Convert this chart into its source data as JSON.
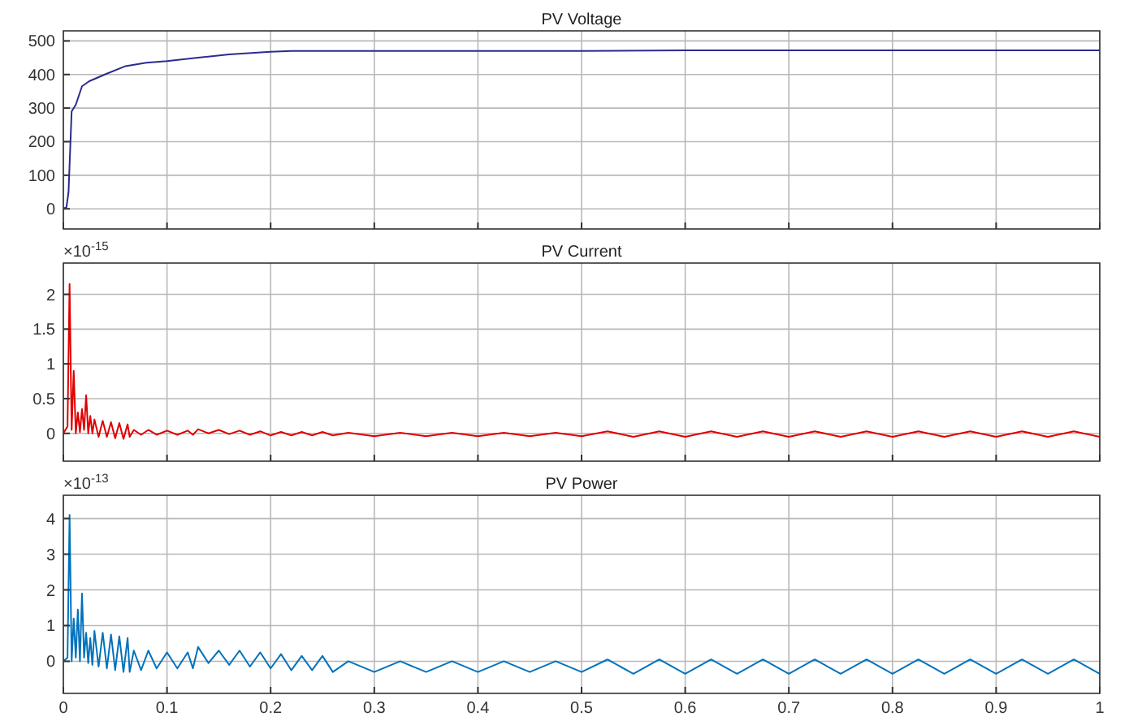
{
  "chart_data": [
    {
      "type": "line",
      "title": "PV Voltage",
      "x": [
        0,
        0.003,
        0.005,
        0.008,
        0.012,
        0.018,
        0.025,
        0.04,
        0.06,
        0.08,
        0.1,
        0.13,
        0.16,
        0.2,
        0.22,
        0.3,
        0.5,
        0.6,
        1
      ],
      "series": [
        {
          "color": "#2b2b8f",
          "values": [
            0,
            5,
            50,
            290,
            310,
            365,
            380,
            400,
            425,
            435,
            440,
            450,
            460,
            468,
            470,
            470,
            470,
            472,
            472
          ]
        }
      ],
      "xlim": [
        0,
        1
      ],
      "xticks": [
        {
          "value": 0,
          "label": null
        },
        {
          "value": 0.1,
          "label": null
        },
        {
          "value": 0.2,
          "label": null
        },
        {
          "value": 0.3,
          "label": null
        },
        {
          "value": 0.4,
          "label": null
        },
        {
          "value": 0.5,
          "label": null
        },
        {
          "value": 0.6,
          "label": null
        },
        {
          "value": 0.7,
          "label": null
        },
        {
          "value": 0.8,
          "label": null
        },
        {
          "value": 0.9,
          "label": null
        },
        {
          "value": 1,
          "label": null
        }
      ],
      "ylim": [
        -60,
        530
      ],
      "yticks": [
        0,
        100,
        200,
        300,
        400,
        500
      ],
      "grid": true,
      "tick_labels": "y"
    },
    {
      "type": "line",
      "title": "PV Current",
      "annotations": [
        "×10$^{-15}$"
      ],
      "x": [
        0,
        0.004,
        0.006,
        0.008,
        0.01,
        0.012,
        0.014,
        0.016,
        0.018,
        0.02,
        0.022,
        0.024,
        0.026,
        0.028,
        0.03,
        0.034,
        0.038,
        0.042,
        0.046,
        0.05,
        0.054,
        0.058,
        0.062,
        0.064,
        0.068,
        0.075,
        0.082,
        0.09,
        0.1,
        0.11,
        0.12,
        0.125,
        0.13,
        0.14,
        0.15,
        0.16,
        0.17,
        0.18,
        0.19,
        0.2,
        0.21,
        0.22,
        0.23,
        0.24,
        0.25,
        0.26,
        0.275,
        0.3,
        0.325,
        0.35,
        0.375,
        0.4,
        0.425,
        0.45,
        0.475,
        0.5,
        0.525,
        0.55,
        0.575,
        0.6,
        0.625,
        0.65,
        0.675,
        0.7,
        0.725,
        0.75,
        0.775,
        0.8,
        0.825,
        0.85,
        0.875,
        0.9,
        0.925,
        0.95,
        0.975,
        1
      ],
      "series": [
        {
          "color": "#e00000",
          "values": [
            0,
            0.1,
            2.15,
            0.05,
            0.9,
            0,
            0.3,
            0.02,
            0.35,
            0.05,
            0.55,
            0,
            0.25,
            0,
            0.2,
            -0.05,
            0.18,
            -0.05,
            0.16,
            -0.07,
            0.15,
            -0.08,
            0.13,
            -0.05,
            0.05,
            -0.02,
            0.05,
            -0.02,
            0.04,
            -0.02,
            0.04,
            -0.02,
            0.06,
            0,
            0.05,
            -0.01,
            0.04,
            -0.02,
            0.03,
            -0.03,
            0.02,
            -0.03,
            0.02,
            -0.03,
            0.02,
            -0.03,
            0.01,
            -0.04,
            0.01,
            -0.04,
            0.01,
            -0.04,
            0.01,
            -0.04,
            0.01,
            -0.04,
            0.03,
            -0.05,
            0.03,
            -0.05,
            0.03,
            -0.05,
            0.03,
            -0.05,
            0.03,
            -0.05,
            0.03,
            -0.05,
            0.03,
            -0.05,
            0.03,
            -0.05,
            0.03,
            -0.05,
            0.03,
            -0.05
          ]
        }
      ],
      "xlim": [
        0,
        1
      ],
      "xticks": [
        {
          "value": 0,
          "label": null
        },
        {
          "value": 0.1,
          "label": null
        },
        {
          "value": 0.2,
          "label": null
        },
        {
          "value": 0.3,
          "label": null
        },
        {
          "value": 0.4,
          "label": null
        },
        {
          "value": 0.5,
          "label": null
        },
        {
          "value": 0.6,
          "label": null
        },
        {
          "value": 0.7,
          "label": null
        },
        {
          "value": 0.8,
          "label": null
        },
        {
          "value": 0.9,
          "label": null
        },
        {
          "value": 1,
          "label": null
        }
      ],
      "ylim": [
        -0.4,
        2.45
      ],
      "yticks": [
        0,
        0.5,
        1,
        1.5,
        2
      ],
      "grid": true,
      "tick_labels": "y"
    },
    {
      "type": "line",
      "title": "PV Power",
      "annotations": [
        "×10$^{-13}$"
      ],
      "x": [
        0,
        0.004,
        0.006,
        0.008,
        0.01,
        0.012,
        0.014,
        0.016,
        0.018,
        0.02,
        0.022,
        0.024,
        0.026,
        0.028,
        0.03,
        0.034,
        0.038,
        0.042,
        0.046,
        0.05,
        0.054,
        0.058,
        0.062,
        0.064,
        0.068,
        0.075,
        0.082,
        0.09,
        0.1,
        0.11,
        0.12,
        0.125,
        0.13,
        0.14,
        0.15,
        0.16,
        0.17,
        0.18,
        0.19,
        0.2,
        0.21,
        0.22,
        0.23,
        0.24,
        0.25,
        0.26,
        0.275,
        0.3,
        0.325,
        0.35,
        0.375,
        0.4,
        0.425,
        0.45,
        0.475,
        0.5,
        0.525,
        0.55,
        0.575,
        0.6,
        0.625,
        0.65,
        0.675,
        0.7,
        0.725,
        0.75,
        0.775,
        0.8,
        0.825,
        0.85,
        0.875,
        0.9,
        0.925,
        0.95,
        0.975,
        1
      ],
      "series": [
        {
          "color": "#0072bd",
          "values": [
            0,
            0.1,
            4.1,
            0,
            1.2,
            0.1,
            1.45,
            0,
            1.9,
            0.1,
            0.8,
            -0.05,
            0.65,
            -0.1,
            0.85,
            -0.15,
            0.8,
            -0.2,
            0.75,
            -0.25,
            0.7,
            -0.3,
            0.65,
            -0.3,
            0.3,
            -0.25,
            0.3,
            -0.2,
            0.25,
            -0.2,
            0.25,
            -0.2,
            0.4,
            -0.05,
            0.3,
            -0.1,
            0.3,
            -0.15,
            0.25,
            -0.2,
            0.2,
            -0.25,
            0.15,
            -0.25,
            0.15,
            -0.3,
            0,
            -0.3,
            0,
            -0.3,
            0,
            -0.3,
            0,
            -0.3,
            0,
            -0.3,
            0.05,
            -0.35,
            0.05,
            -0.35,
            0.05,
            -0.35,
            0.05,
            -0.35,
            0.05,
            -0.35,
            0.05,
            -0.35,
            0.05,
            -0.35,
            0.05,
            -0.35,
            0.05,
            -0.35,
            0.05,
            -0.35
          ]
        }
      ],
      "xlim": [
        0,
        1
      ],
      "xticks": [
        0,
        0.1,
        0.2,
        0.3,
        0.4,
        0.5,
        0.6,
        0.7,
        0.8,
        0.9,
        1
      ],
      "ylim": [
        -0.9,
        4.65
      ],
      "yticks": [
        0,
        1,
        2,
        3,
        4
      ],
      "grid": true
    }
  ]
}
